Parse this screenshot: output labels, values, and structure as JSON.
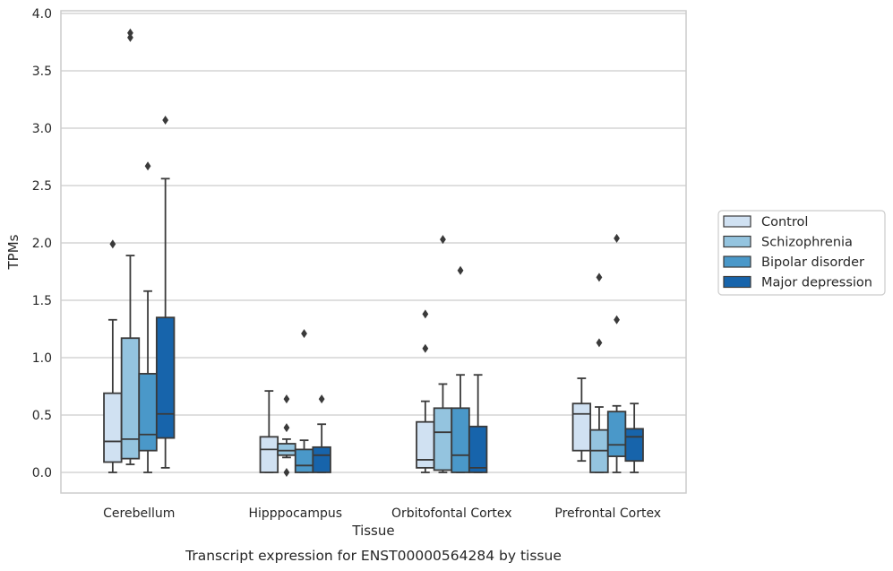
{
  "caption": "Transcript expression for ENST00000564284 by tissue",
  "chart_data": {
    "type": "box",
    "xlabel": "Tissue",
    "ylabel": "TPMs",
    "ylim": [
      -0.18,
      4.02
    ],
    "yticks": [
      "0.0",
      "0.5",
      "1.0",
      "1.5",
      "2.0",
      "2.5",
      "3.0",
      "3.5",
      "4.0"
    ],
    "ytick_values": [
      0,
      0.5,
      1.0,
      1.5,
      2.0,
      2.5,
      3.0,
      3.5,
      4.0
    ],
    "grid": "horizontal",
    "legend_placement": "right",
    "categories": [
      "Cerebellum",
      "Hipppocampus",
      "Orbitofontal Cortex",
      "Prefrontal Cortex"
    ],
    "series": [
      {
        "name": "Control",
        "color": "#d0e1f2",
        "boxes": [
          {
            "whisker_low": 0.0,
            "q1": 0.09,
            "median": 0.27,
            "q3": 0.69,
            "whisker_high": 1.33,
            "outliers": [
              1.99
            ]
          },
          {
            "whisker_low": 0.0,
            "q1": 0.0,
            "median": 0.2,
            "q3": 0.31,
            "whisker_high": 0.71,
            "outliers": []
          },
          {
            "whisker_low": 0.0,
            "q1": 0.04,
            "median": 0.11,
            "q3": 0.44,
            "whisker_high": 0.62,
            "outliers": [
              1.08,
              1.38
            ]
          },
          {
            "whisker_low": 0.1,
            "q1": 0.19,
            "median": 0.51,
            "q3": 0.6,
            "whisker_high": 0.82,
            "outliers": []
          }
        ]
      },
      {
        "name": "Schizophrenia",
        "color": "#94c4df",
        "boxes": [
          {
            "whisker_low": 0.07,
            "q1": 0.12,
            "median": 0.29,
            "q3": 1.17,
            "whisker_high": 1.89,
            "outliers": [
              3.79,
              3.83
            ]
          },
          {
            "whisker_low": 0.13,
            "q1": 0.15,
            "median": 0.19,
            "q3": 0.25,
            "whisker_high": 0.29,
            "outliers": [
              0.0,
              0.39,
              0.64
            ]
          },
          {
            "whisker_low": 0.0,
            "q1": 0.02,
            "median": 0.35,
            "q3": 0.56,
            "whisker_high": 0.77,
            "outliers": [
              2.03
            ]
          },
          {
            "whisker_low": 0.0,
            "q1": 0.0,
            "median": 0.19,
            "q3": 0.37,
            "whisker_high": 0.57,
            "outliers": [
              1.13,
              1.7
            ]
          }
        ]
      },
      {
        "name": "Bipolar disorder",
        "color": "#4a98c9",
        "boxes": [
          {
            "whisker_low": 0.0,
            "q1": 0.19,
            "median": 0.33,
            "q3": 0.86,
            "whisker_high": 1.58,
            "outliers": [
              2.67
            ]
          },
          {
            "whisker_low": 0.0,
            "q1": 0.0,
            "median": 0.06,
            "q3": 0.2,
            "whisker_high": 0.28,
            "outliers": [
              1.21
            ]
          },
          {
            "whisker_low": 0.0,
            "q1": 0.0,
            "median": 0.15,
            "q3": 0.56,
            "whisker_high": 0.85,
            "outliers": [
              1.76
            ]
          },
          {
            "whisker_low": 0.0,
            "q1": 0.14,
            "median": 0.24,
            "q3": 0.53,
            "whisker_high": 0.58,
            "outliers": [
              1.33,
              2.04
            ]
          }
        ]
      },
      {
        "name": "Major depression",
        "color": "#1764ab",
        "boxes": [
          {
            "whisker_low": 0.04,
            "q1": 0.3,
            "median": 0.51,
            "q3": 1.35,
            "whisker_high": 2.56,
            "outliers": [
              3.07
            ]
          },
          {
            "whisker_low": 0.0,
            "q1": 0.0,
            "median": 0.15,
            "q3": 0.22,
            "whisker_high": 0.42,
            "outliers": [
              0.64
            ]
          },
          {
            "whisker_low": 0.0,
            "q1": 0.0,
            "median": 0.04,
            "q3": 0.4,
            "whisker_high": 0.85,
            "outliers": []
          },
          {
            "whisker_low": 0.0,
            "q1": 0.1,
            "median": 0.31,
            "q3": 0.38,
            "whisker_high": 0.6,
            "outliers": []
          }
        ]
      }
    ]
  }
}
